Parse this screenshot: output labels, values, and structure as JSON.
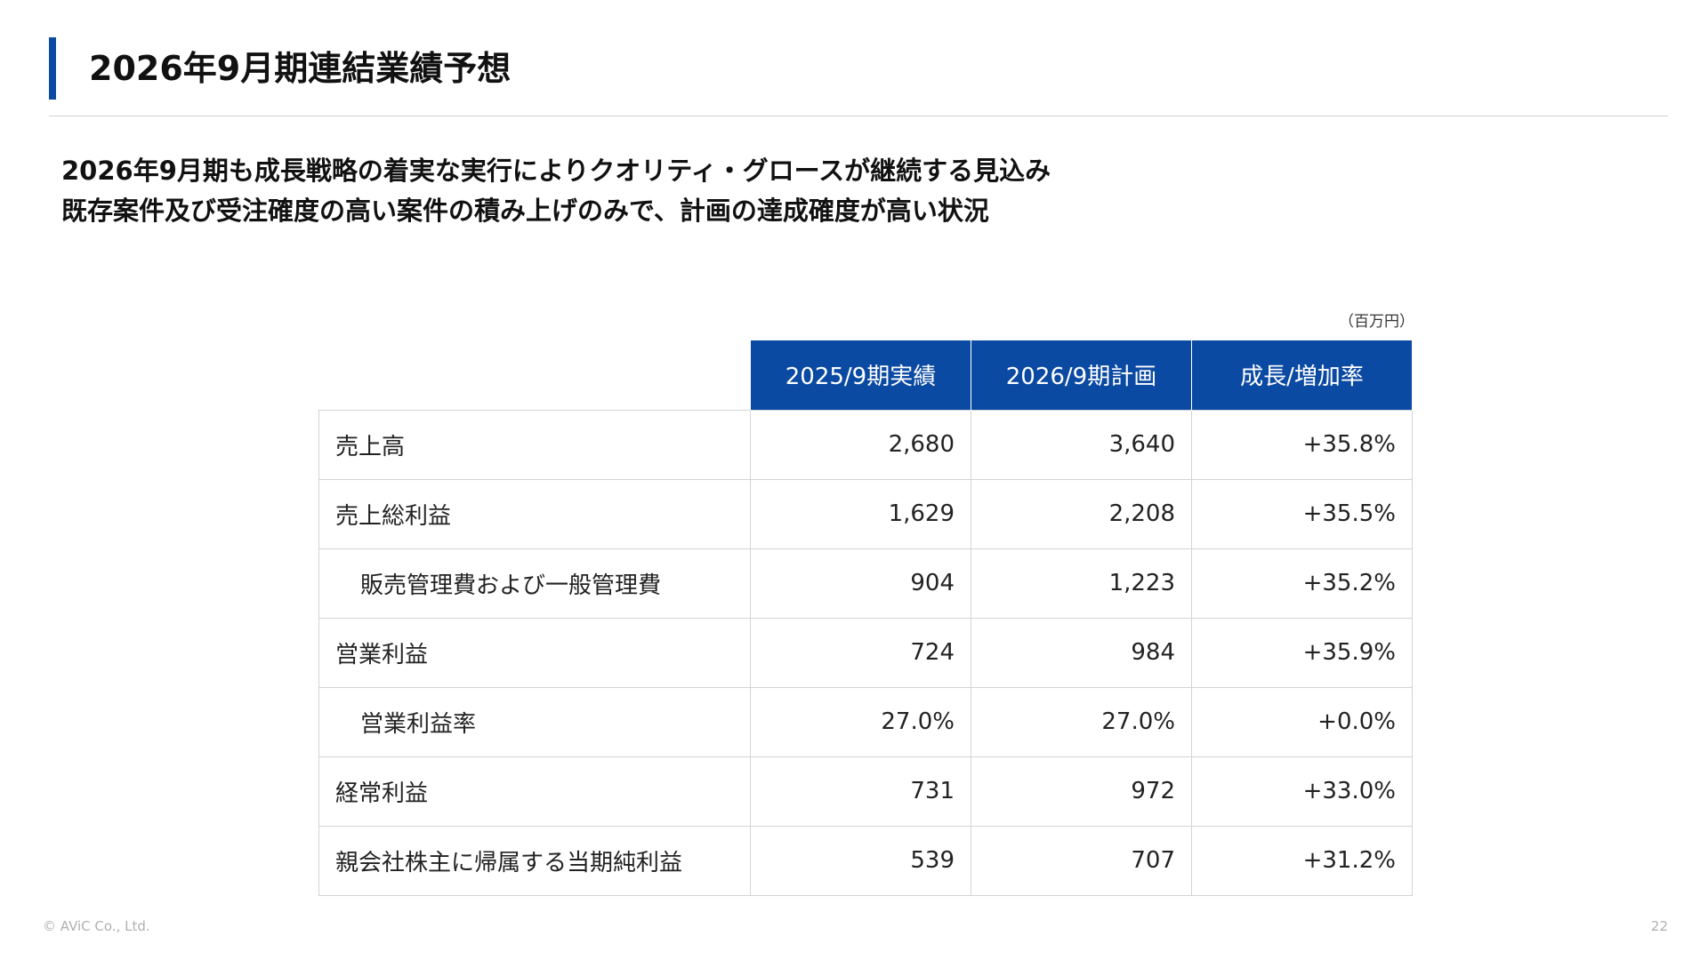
{
  "header": {
    "title": "2026年9月期連結業績予想"
  },
  "lead": {
    "line1": "2026年9月期も成長戦略の着実な実行によりクオリティ・グロースが継続する見込み",
    "line2": "既存案件及び受注確度の高い案件の積み上げのみで、計画の達成確度が高い状況"
  },
  "table": {
    "unit": "（百万円）",
    "columns": [
      "2025/9期実績",
      "2026/9期計画",
      "成長/増加率"
    ],
    "rows": [
      {
        "label": "売上高",
        "actual": "2,680",
        "plan": "3,640",
        "growth": "+35.8%"
      },
      {
        "label": "売上総利益",
        "actual": "1,629",
        "plan": "2,208",
        "growth": "+35.5%"
      },
      {
        "label": "販売管理費および一般管理費",
        "actual": "904",
        "plan": "1,223",
        "growth": "+35.2%"
      },
      {
        "label": "営業利益",
        "actual": "724",
        "plan": "984",
        "growth": "+35.9%"
      },
      {
        "label": "営業利益率",
        "actual": "27.0%",
        "plan": "27.0%",
        "growth": "+0.0%"
      },
      {
        "label": "経常利益",
        "actual": "731",
        "plan": "972",
        "growth": "+33.0%"
      },
      {
        "label": "親会社株主に帰属する当期純利益",
        "actual": "539",
        "plan": "707",
        "growth": "+31.2%"
      }
    ]
  },
  "footer": {
    "copyright": "© AViC Co., Ltd.",
    "page_number": "22"
  },
  "colors": {
    "accent": "#0b4aa2",
    "header_text": "#ffffff",
    "border": "#d4d4d4"
  }
}
